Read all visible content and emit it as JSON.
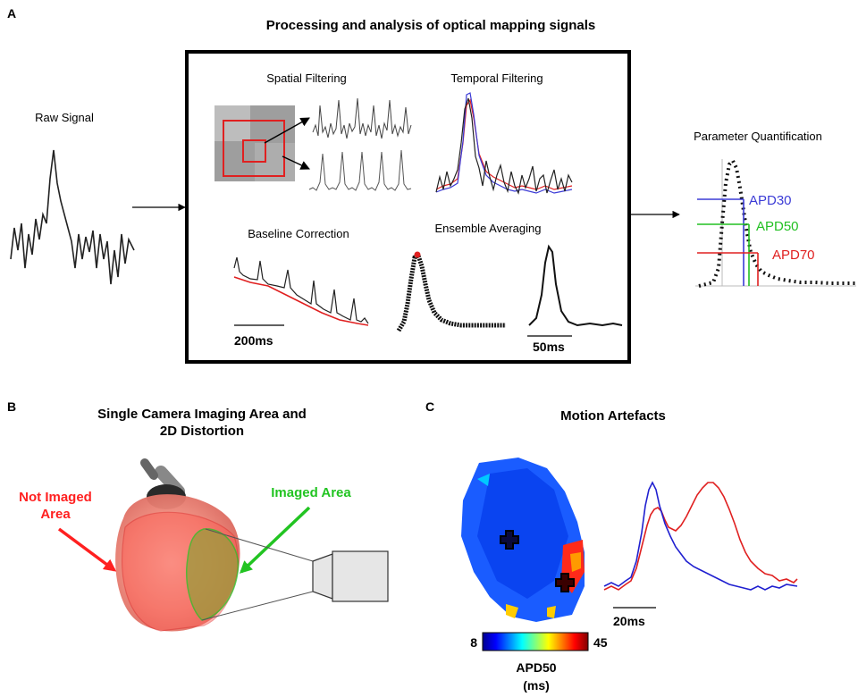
{
  "panels": {
    "a": {
      "letter": "A",
      "title": "Processing and analysis of optical mapping signals",
      "raw_signal_label": "Raw Signal",
      "spatial_label": "Spatial Filtering",
      "temporal_label": "Temporal Filtering",
      "baseline_label": "Baseline Correction",
      "ensemble_label": "Ensemble Averaging",
      "param_label": "Parameter Quantification",
      "scale_200": "200ms",
      "scale_50": "50ms",
      "apd": [
        {
          "label": "APD30",
          "color": "#3b3bd6"
        },
        {
          "label": "APD50",
          "color": "#22c022"
        },
        {
          "label": "APD70",
          "color": "#e02020"
        }
      ]
    },
    "b": {
      "letter": "B",
      "title_line1": "Single Camera Imaging Area and",
      "title_line2": "2D Distortion",
      "not_imaged_line1": "Not Imaged",
      "not_imaged_line2": "Area",
      "imaged": "Imaged Area",
      "colors": {
        "not_imaged": "#ff2020",
        "imaged": "#22c422"
      }
    },
    "c": {
      "letter": "C",
      "title": "Motion Artefacts",
      "scale_20": "20ms",
      "colorbar_min": "8",
      "colorbar_max": "45",
      "colorbar_label_line1": "APD50",
      "colorbar_label_line2": "(ms)",
      "trace_colors": [
        "#2020d0",
        "#e02020"
      ]
    }
  }
}
